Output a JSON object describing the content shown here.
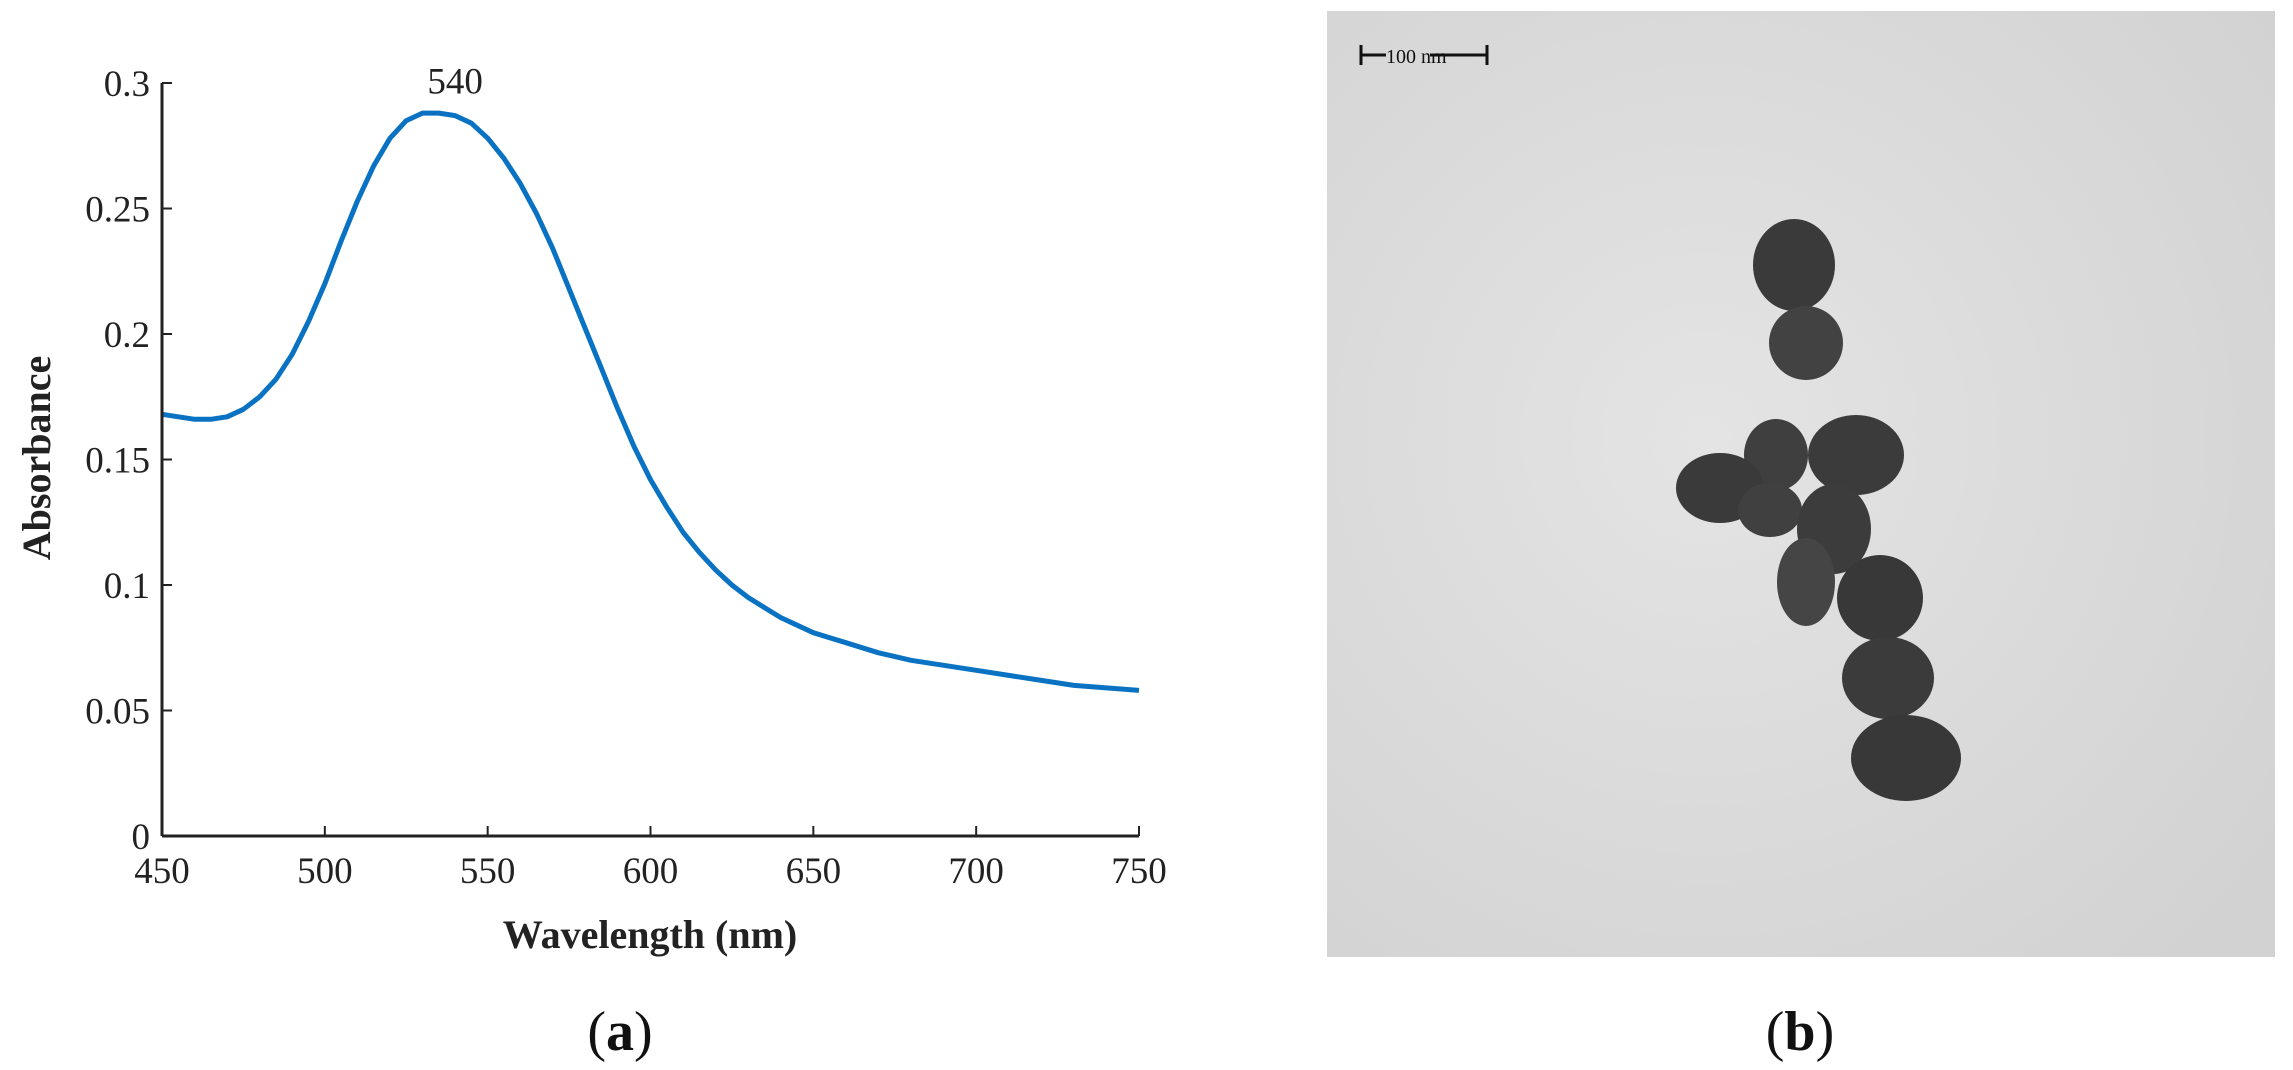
{
  "chart_data": {
    "type": "line",
    "title": "",
    "xlabel": "Wavelength (nm)",
    "ylabel": "Absorbance",
    "xlim": [
      450,
      750
    ],
    "ylim": [
      0,
      0.3
    ],
    "x_ticks": [
      450,
      500,
      550,
      600,
      650,
      700,
      750
    ],
    "y_ticks": [
      0,
      0.05,
      0.1,
      0.15,
      0.2,
      0.25,
      0.3
    ],
    "x_tick_labels": [
      "450",
      "500",
      "550",
      "600",
      "650",
      "700",
      "750"
    ],
    "y_tick_labels": [
      "0",
      "0.05",
      "0.1",
      "0.15",
      "0.2",
      "0.25",
      "0.3"
    ],
    "grid": false,
    "legend": "none",
    "color": "#0a72c2",
    "annotations": [
      {
        "text": "540",
        "x": 540,
        "y": 0.287
      }
    ],
    "series": [
      {
        "x": [
          450,
          455,
          460,
          465,
          470,
          475,
          480,
          485,
          490,
          495,
          500,
          505,
          510,
          515,
          520,
          525,
          530,
          535,
          540,
          545,
          550,
          555,
          560,
          565,
          570,
          575,
          580,
          585,
          590,
          595,
          600,
          605,
          610,
          615,
          620,
          625,
          630,
          635,
          640,
          645,
          650,
          660,
          670,
          680,
          690,
          700,
          710,
          720,
          730,
          740,
          750
        ],
        "y": [
          0.168,
          0.167,
          0.166,
          0.166,
          0.167,
          0.17,
          0.175,
          0.182,
          0.192,
          0.205,
          0.22,
          0.237,
          0.253,
          0.267,
          0.278,
          0.285,
          0.288,
          0.288,
          0.287,
          0.284,
          0.278,
          0.27,
          0.26,
          0.248,
          0.234,
          0.218,
          0.202,
          0.186,
          0.17,
          0.155,
          0.142,
          0.131,
          0.121,
          0.113,
          0.106,
          0.1,
          0.095,
          0.091,
          0.087,
          0.084,
          0.081,
          0.077,
          0.073,
          0.07,
          0.068,
          0.066,
          0.064,
          0.062,
          0.06,
          0.059,
          0.058
        ]
      }
    ]
  },
  "panels": {
    "a_label_open": "(",
    "a_label_letter": "a",
    "a_label_close": ")",
    "b_label_open": "(",
    "b_label_letter": "b",
    "b_label_close": ")"
  },
  "micrograph": {
    "scale_bar_text": "100  nm",
    "background": "#d9d9d9",
    "particle_color": "#3c3c3c"
  }
}
